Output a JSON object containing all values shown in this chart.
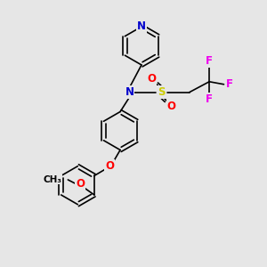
{
  "background_color": "#e6e6e6",
  "bond_color": "#000000",
  "N_color": "#0000cc",
  "O_color": "#ff0000",
  "S_color": "#cccc00",
  "F_color": "#ee00ee",
  "figsize": [
    3.0,
    3.0
  ],
  "dpi": 100,
  "xlim": [
    0,
    10
  ],
  "ylim": [
    0,
    10
  ]
}
